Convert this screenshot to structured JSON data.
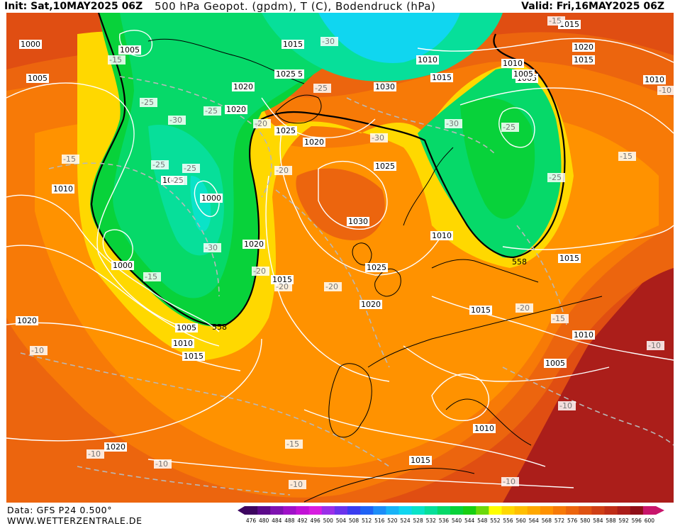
{
  "header": {
    "init": "Init: Sat,10MAY2025 06Z",
    "title": "500 hPa Geopot. (gpdm), T (C), Bodendruck (hPa)",
    "valid": "Valid: Fri,16MAY2025 06Z"
  },
  "footer": {
    "data_source": "Data: GFS P24 0.500°",
    "website": "WWW.WETTERZENTRALE.DE"
  },
  "colorbar": {
    "ticks": [
      "476",
      "480",
      "484",
      "488",
      "492",
      "496",
      "500",
      "504",
      "508",
      "512",
      "516",
      "520",
      "524",
      "528",
      "532",
      "536",
      "540",
      "544",
      "548",
      "552",
      "556",
      "560",
      "564",
      "568",
      "572",
      "576",
      "580",
      "584",
      "588",
      "592",
      "596",
      "600"
    ],
    "colors": [
      "#3d0660",
      "#5c0a8a",
      "#7e12b0",
      "#a011c8",
      "#c212d6",
      "#d81de0",
      "#9a2fe8",
      "#6a33ec",
      "#3a3cf0",
      "#1f62f5",
      "#1c8df8",
      "#18b3f7",
      "#10d6f0",
      "#0ae3c8",
      "#07df9a",
      "#06d969",
      "#08d23a",
      "#18cf12",
      "#6cd90a",
      "#ffff00",
      "#ffd800",
      "#ffbf00",
      "#ffa800",
      "#ff9200",
      "#f77a07",
      "#ec650e",
      "#df5212",
      "#cf3f16",
      "#bf2e18",
      "#ab1e1a",
      "#8f0f18",
      "#c8156b"
    ]
  },
  "labels": {
    "pressure": [
      "1000",
      "1005",
      "1005",
      "1015",
      "1010",
      "1015",
      "1015",
      "1010",
      "1015",
      "1020",
      "1005",
      "1020",
      "1015",
      "1030",
      "1020",
      "1025",
      "1010",
      "1005",
      "1025",
      "1000",
      "1005",
      "1000",
      "1010",
      "1020",
      "1030",
      "1015",
      "1025",
      "1020",
      "1010",
      "1015",
      "1020",
      "1015",
      "1010",
      "1005",
      "1005",
      "1010",
      "1015",
      "1020",
      "1010",
      "1015",
      "1020",
      "1025"
    ],
    "temperature": [
      "-30",
      "-15",
      "-25",
      "-25",
      "-25",
      "-30",
      "-20",
      "-15",
      "-25",
      "-25",
      "-20",
      "-15",
      "-30",
      "-20",
      "-25",
      "-20",
      "-20",
      "-30",
      "-25",
      "-25",
      "-30",
      "-15",
      "-15",
      "-10",
      "-20",
      "-10",
      "-10",
      "-15",
      "-10",
      "-10",
      "-15",
      "-10",
      "-10",
      "-10"
    ],
    "height_558": "558"
  }
}
